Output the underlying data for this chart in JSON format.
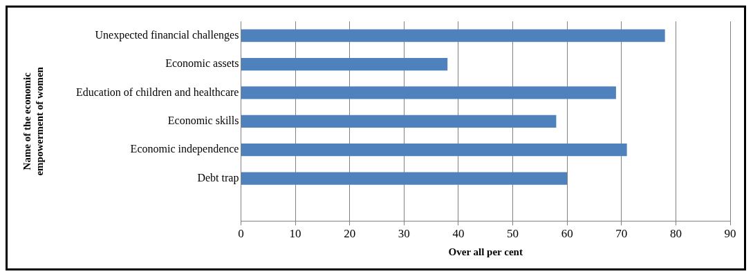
{
  "chart_data": {
    "type": "bar",
    "orientation": "horizontal",
    "categories": [
      "Unexpected financial challenges",
      "Economic assets",
      "Education of children and healthcare",
      "Economic skills",
      "Economic independence",
      "Debt trap",
      null
    ],
    "values": [
      78,
      38,
      69,
      58,
      71,
      60,
      null
    ],
    "color": "#4f81bd",
    "xlim": [
      0,
      90
    ],
    "xticks": [
      0,
      10,
      20,
      30,
      40,
      50,
      60,
      70,
      80,
      90
    ],
    "xlabel": "Over all per cent",
    "ylabel": "Name of the economic\nempowerment of women",
    "grid": "x",
    "legend": false
  }
}
